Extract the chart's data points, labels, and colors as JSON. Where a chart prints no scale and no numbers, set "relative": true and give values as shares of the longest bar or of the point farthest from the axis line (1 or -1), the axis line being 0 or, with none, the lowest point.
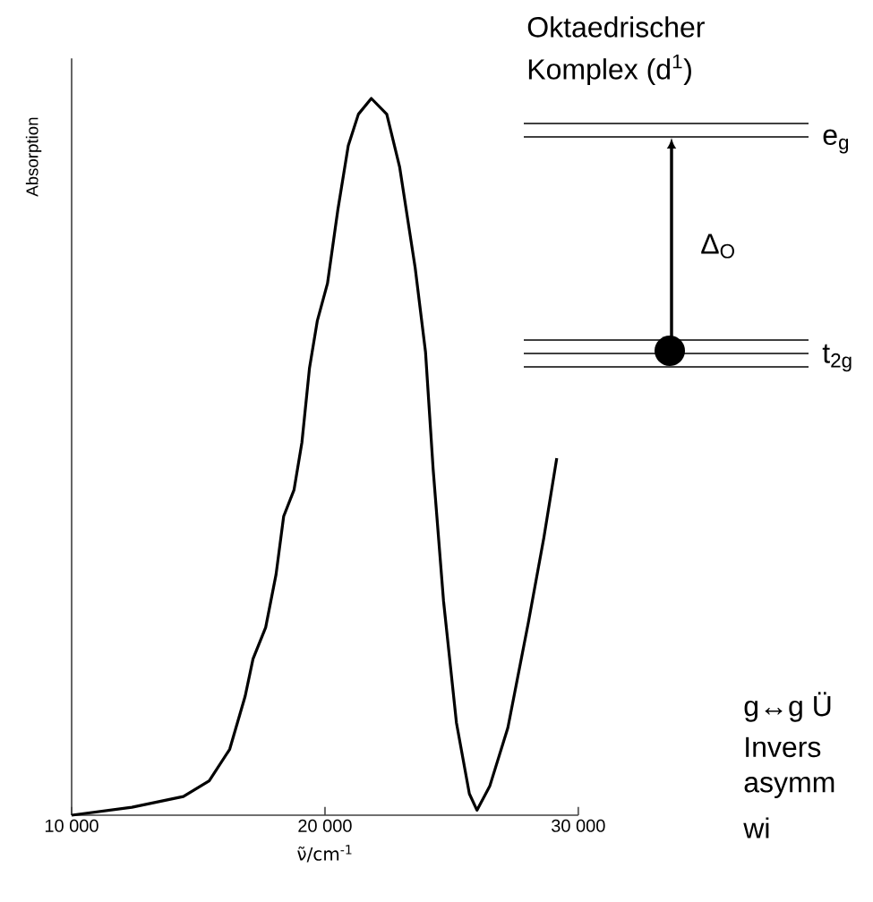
{
  "chart_data": {
    "type": "line",
    "relative": true,
    "xlabel": "ν̃/cm$^{-1}$",
    "ylabel": "Absorption",
    "color": "#000000",
    "xlim": [
      10000,
      30000
    ],
    "xticks": [
      {
        "value": 10000,
        "label": "10 000"
      },
      {
        "value": 20000,
        "label": "20 000"
      },
      {
        "value": 30000,
        "label": "30 000"
      }
    ],
    "x": [
      10000,
      12380,
      14410,
      15430,
      16240,
      16850,
      17160,
      17660,
      18070,
      18370,
      18780,
      19090,
      19390,
      19700,
      20100,
      20510,
      20920,
      21320,
      21830,
      22440,
      22950,
      23560,
      23970,
      24270,
      24680,
      25190,
      25700,
      26000,
      26510,
      27220,
      28030,
      28640,
      29150
    ],
    "values": [
      0,
      0.011,
      0.026,
      0.048,
      0.092,
      0.166,
      0.218,
      0.262,
      0.336,
      0.417,
      0.454,
      0.52,
      0.624,
      0.69,
      0.742,
      0.845,
      0.934,
      0.978,
      1.0,
      0.978,
      0.904,
      0.764,
      0.646,
      0.483,
      0.299,
      0.129,
      0.03,
      0.007,
      0.041,
      0.122,
      0.269,
      0.387,
      0.498
    ],
    "annotations": [
      "Oktaedrischer",
      "Komplex (d$^{1}$)",
      "e$_{g}$",
      "t$_{2g}$",
      "Δ$_{O}$",
      "g↔g Ü",
      "Invers",
      "asymm",
      "wi"
    ]
  }
}
